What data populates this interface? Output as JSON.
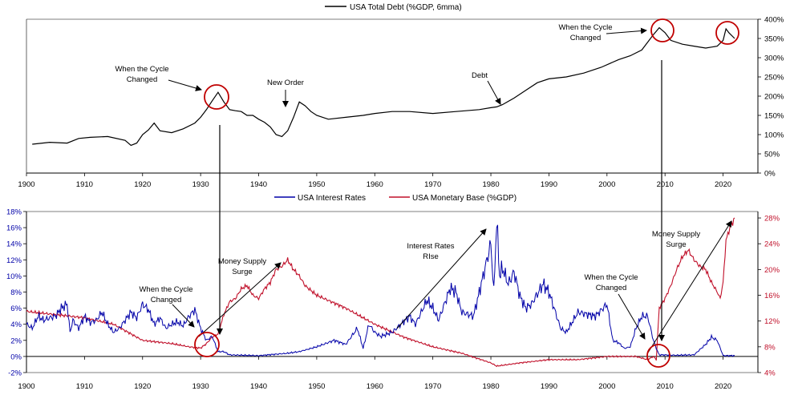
{
  "colors": {
    "debt": "#000000",
    "rates": "#0000a8",
    "base": "#c0102a",
    "circle": "#c00000",
    "axis": "#000000"
  },
  "chart_data": [
    {
      "type": "line",
      "legend": {
        "name": "USA Total Debt (%GDP, 6mma)",
        "placement": "top-center"
      },
      "xlim": [
        1900,
        2026
      ],
      "ylim": [
        0,
        400
      ],
      "ytick_step": 50,
      "ytick_suffix": "%",
      "ytick_labels": [
        "0%",
        "50%",
        "100%",
        "150%",
        "200%",
        "250%",
        "300%",
        "350%",
        "400%"
      ],
      "xticks": [
        1900,
        1910,
        1920,
        1930,
        1940,
        1950,
        1960,
        1970,
        1980,
        1990,
        2000,
        2010,
        2020
      ],
      "xtick_labels": [
        "1900",
        "1910",
        "1920",
        "1930",
        "1940",
        "1950",
        "1960",
        "1970",
        "1980",
        "1990",
        "2000",
        "2010",
        "2020"
      ],
      "series": [
        {
          "name": "USA Total Debt (%GDP, 6mma)",
          "x": [
            1901,
            1904,
            1907,
            1909,
            1911,
            1914,
            1917,
            1918,
            1919,
            1920,
            1921,
            1922,
            1923,
            1925,
            1927,
            1929,
            1930,
            1931,
            1932,
            1933,
            1934,
            1935,
            1936,
            1937,
            1938,
            1939,
            1940,
            1941,
            1942,
            1943,
            1944,
            1945,
            1946,
            1947,
            1948,
            1949,
            1950,
            1952,
            1955,
            1958,
            1960,
            1963,
            1966,
            1970,
            1974,
            1978,
            1980,
            1981,
            1982,
            1984,
            1986,
            1988,
            1990,
            1993,
            1996,
            1999,
            2002,
            2004,
            2006,
            2007,
            2008,
            2009,
            2010,
            2011,
            2013,
            2015,
            2017,
            2019,
            2020,
            2020.5,
            2021,
            2022
          ],
          "values": [
            75,
            80,
            78,
            90,
            93,
            95,
            85,
            72,
            78,
            100,
            112,
            130,
            110,
            105,
            115,
            130,
            145,
            165,
            188,
            210,
            185,
            165,
            162,
            160,
            150,
            150,
            140,
            132,
            120,
            100,
            95,
            110,
            145,
            185,
            175,
            160,
            150,
            140,
            145,
            150,
            155,
            160,
            160,
            155,
            160,
            165,
            170,
            172,
            178,
            195,
            215,
            235,
            245,
            250,
            260,
            275,
            295,
            305,
            320,
            340,
            360,
            378,
            365,
            345,
            335,
            330,
            325,
            330,
            345,
            375,
            365,
            350
          ]
        }
      ],
      "annotations": [
        {
          "text_lines": [
            "When the Cycle",
            "Changed"
          ]
        },
        {
          "text_lines": [
            "New Order"
          ]
        },
        {
          "text_lines": [
            "Debt"
          ]
        },
        {
          "text_lines": [
            "When the Cycle",
            "Changed"
          ]
        }
      ]
    },
    {
      "type": "line",
      "legend": {
        "placement": "top-center"
      },
      "xlim": [
        1900,
        2026
      ],
      "xticks": [
        1900,
        1910,
        1920,
        1930,
        1940,
        1950,
        1960,
        1970,
        1980,
        1990,
        2000,
        2010,
        2020
      ],
      "xtick_labels": [
        "1900",
        "1910",
        "1920",
        "1930",
        "1940",
        "1950",
        "1960",
        "1970",
        "1980",
        "1990",
        "2000",
        "2010",
        "2020"
      ],
      "y_left": {
        "range": [
          -2,
          18
        ],
        "ticks": [
          -2,
          0,
          2,
          4,
          6,
          8,
          10,
          12,
          14,
          16,
          18
        ],
        "tick_labels": [
          "-2%",
          "0%",
          "2%",
          "4%",
          "6%",
          "8%",
          "10%",
          "12%",
          "14%",
          "16%",
          "18%"
        ]
      },
      "y_right": {
        "range": [
          4,
          29
        ],
        "ticks": [
          4,
          8,
          12,
          16,
          20,
          24,
          28
        ],
        "tick_labels": [
          "4%",
          "8%",
          "12%",
          "16%",
          "20%",
          "24%",
          "28%"
        ]
      },
      "series": [
        {
          "name": "USA Interest Rates",
          "axis": "left",
          "x": [
            1900,
            1901,
            1902,
            1903,
            1904,
            1905,
            1906,
            1907,
            1907.5,
            1908,
            1909,
            1910,
            1911,
            1912,
            1913,
            1914,
            1915,
            1916,
            1917,
            1918,
            1919,
            1920,
            1921,
            1922,
            1923,
            1924,
            1925,
            1926,
            1927,
            1928,
            1929,
            1930,
            1931,
            1932,
            1933,
            1934,
            1935,
            1940,
            1945,
            1947,
            1950,
            1953,
            1955,
            1957,
            1958,
            1959,
            1960,
            1961,
            1963,
            1966,
            1967,
            1969,
            1970,
            1971,
            1973,
            1974,
            1975,
            1977,
            1978,
            1979,
            1980,
            1980.5,
            1981,
            1981.5,
            1982,
            1983,
            1984,
            1985,
            1986,
            1987,
            1989,
            1990,
            1992,
            1993,
            1995,
            1998,
            2000,
            2001,
            2002,
            2003,
            2004,
            2005,
            2006,
            2007,
            2008,
            2008.5,
            2009,
            2012,
            2015,
            2017,
            2018,
            2019,
            2020,
            2021,
            2022
          ],
          "values": [
            4.0,
            3.5,
            5.0,
            4.5,
            4.8,
            5.0,
            6.0,
            6.5,
            3.0,
            4.5,
            3.5,
            5.0,
            4.2,
            4.5,
            5.5,
            4.0,
            3.0,
            3.5,
            4.5,
            5.5,
            4.8,
            6.5,
            5.8,
            4.0,
            4.8,
            3.5,
            4.0,
            4.3,
            3.8,
            5.0,
            5.8,
            3.5,
            2.0,
            2.5,
            0.6,
            0.6,
            0.2,
            0.1,
            0.4,
            0.6,
            1.2,
            2.0,
            1.5,
            3.5,
            1.0,
            4.0,
            3.0,
            2.5,
            3.0,
            5.0,
            4.0,
            7.0,
            6.0,
            4.5,
            8.5,
            8.0,
            5.5,
            5.0,
            8.0,
            11.0,
            14.0,
            8.0,
            17.0,
            10.0,
            11.0,
            9.0,
            10.5,
            7.5,
            6.0,
            6.5,
            9.0,
            8.0,
            3.5,
            3.0,
            5.5,
            5.0,
            6.5,
            2.0,
            1.7,
            1.0,
            1.2,
            3.5,
            5.0,
            5.0,
            2.0,
            1.0,
            0.2,
            0.15,
            0.2,
            1.5,
            2.4,
            2.0,
            0.1,
            0.1,
            0.1
          ]
        },
        {
          "name": "USA Monetary Base (%GDP)",
          "axis": "right",
          "x": [
            1900,
            1905,
            1910,
            1915,
            1920,
            1925,
            1928,
            1930,
            1931,
            1932,
            1933,
            1934,
            1935,
            1936,
            1937,
            1938,
            1939,
            1940,
            1941,
            1942,
            1943,
            1944,
            1945,
            1946,
            1947,
            1948,
            1950,
            1955,
            1960,
            1965,
            1970,
            1975,
            1980,
            1981,
            1985,
            1990,
            1995,
            2000,
            2005,
            2007,
            2008,
            2008.5,
            2009,
            2010,
            2011,
            2012,
            2013,
            2014,
            2015,
            2016,
            2017,
            2018,
            2019,
            2019.5,
            2020,
            2020.5,
            2021,
            2022
          ],
          "values": [
            13.5,
            13.0,
            12.5,
            11.5,
            9.0,
            8.5,
            8.0,
            7.8,
            8.5,
            9.5,
            10.0,
            13.0,
            15.0,
            15.5,
            17.0,
            17.5,
            16.0,
            15.5,
            17.0,
            18.0,
            20.0,
            20.5,
            21.5,
            20.0,
            19.0,
            17.5,
            16.0,
            14.0,
            11.5,
            9.5,
            8.0,
            7.0,
            5.5,
            5.0,
            5.5,
            6.0,
            6.0,
            6.5,
            6.5,
            6.0,
            6.5,
            6.0,
            14.0,
            15.5,
            17.5,
            20.0,
            22.0,
            23.0,
            21.5,
            20.5,
            20.0,
            18.0,
            16.5,
            15.5,
            18.0,
            24.5,
            26.0,
            28.0
          ]
        }
      ],
      "annotations": [
        {
          "text_lines": [
            "When the Cycle",
            "Changed"
          ]
        },
        {
          "text_lines": [
            "Money Supply",
            "Surge"
          ]
        },
        {
          "text_lines": [
            "Interest Rates",
            "RIse"
          ]
        },
        {
          "text_lines": [
            "When the Cycle",
            "Changed"
          ]
        },
        {
          "text_lines": [
            "Money Supply",
            "Surge"
          ]
        }
      ]
    }
  ]
}
